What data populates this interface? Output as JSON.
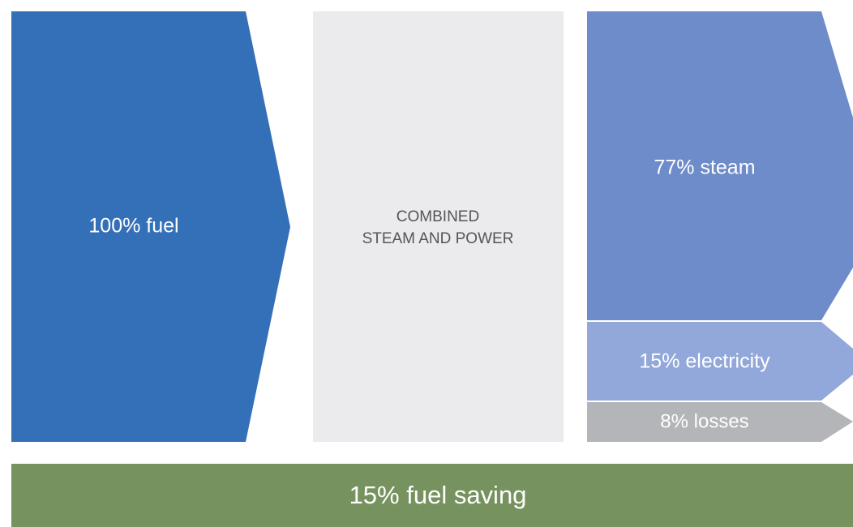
{
  "input": {
    "label": "100% fuel"
  },
  "process": {
    "lines": [
      "COMBINED",
      "STEAM AND POWER"
    ]
  },
  "outputs": [
    {
      "label": "77% steam"
    },
    {
      "label": "15% electricity"
    },
    {
      "label": "8% losses"
    }
  ],
  "footer": {
    "label": "15% fuel saving"
  }
}
